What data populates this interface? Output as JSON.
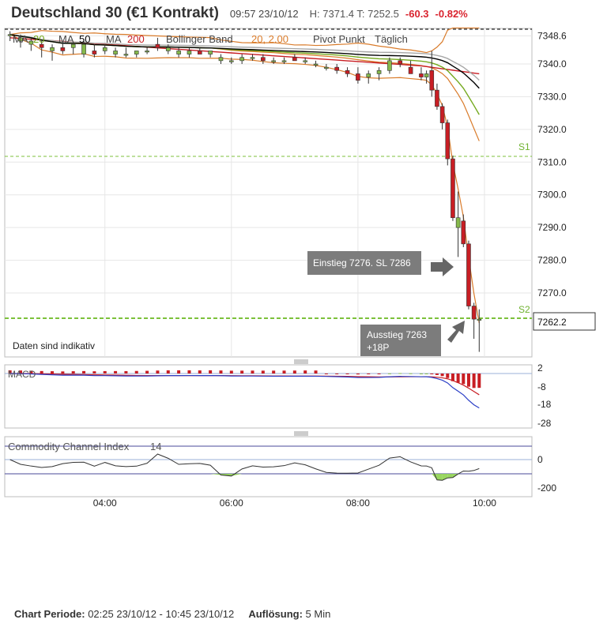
{
  "header": {
    "title": "Deutschland 30 (€1 Kontrakt)",
    "time": "09:57 23/10/12",
    "high_low": "H: 7371.4  T: 7252.5",
    "change": "-60.3",
    "change_pct": "-0.82%"
  },
  "legend": {
    "ma1_label": "MA",
    "ma1_period": "20",
    "ma2_label": "MA",
    "ma2_period": "50",
    "ma3_label": "MA",
    "ma3_period": "200",
    "bb_label": "Bollinger Band",
    "bb_params": "20, 2.00",
    "pivot_label": "Pivot Punkt",
    "pivot_period": "Täglich"
  },
  "colors": {
    "up": "#86b94b",
    "down": "#c81e24",
    "ma20": "#74a91e",
    "ma50": "#000000",
    "ma200": "#c81e24",
    "bollinger": "#d97b2a",
    "pivot": "#7cc13b",
    "macd_line": "#2b3fc6",
    "cci_fill_low": "#8ed14f",
    "cci_fill_high": "#f08080"
  },
  "notes": {
    "indicative": "Daten sind indikativ"
  },
  "annotations": {
    "entry": "Einstieg 7276. SL 7286",
    "exit_line1": "Ausstieg 7263",
    "exit_line2": "+18P"
  },
  "macd": {
    "label": "MACD",
    "ticks": [
      "2",
      "-8",
      "-18",
      "-28"
    ]
  },
  "cci": {
    "label": "Commodity Channel Index",
    "period": "14",
    "ticks": [
      "0",
      "-200"
    ]
  },
  "footer": {
    "period_label": "Chart Periode:",
    "period_value": "02:25 23/10/12 - 10:45 23/10/12",
    "resolution_label": "Auflösung:",
    "resolution_value": "5 Min"
  },
  "chart_data": {
    "type": "candlestick",
    "resolution": "5 Min",
    "x_ticks": [
      "04:00",
      "06:00",
      "08:00",
      "10:00"
    ],
    "y_ticks": [
      7348.6,
      7340.0,
      7330.0,
      7320.0,
      7310.0,
      7300.0,
      7290.0,
      7280.0,
      7270.0
    ],
    "ylim": [
      7260,
      7350
    ],
    "last_price": 7262.2,
    "last_price_label": "7262.2",
    "pivot_levels": [
      {
        "name": "S1",
        "value": 7312
      },
      {
        "name": "S2",
        "value": 7263
      }
    ],
    "candles": [
      {
        "t": "02:30",
        "o": 7349,
        "h": 7350,
        "l": 7347,
        "c": 7349
      },
      {
        "t": "02:40",
        "o": 7347,
        "h": 7349,
        "l": 7345,
        "c": 7348
      },
      {
        "t": "02:50",
        "o": 7346,
        "h": 7348,
        "l": 7344,
        "c": 7347
      },
      {
        "t": "03:00",
        "o": 7346,
        "h": 7347,
        "l": 7342,
        "c": 7345
      },
      {
        "t": "03:10",
        "o": 7344,
        "h": 7346,
        "l": 7341,
        "c": 7345
      },
      {
        "t": "03:20",
        "o": 7345,
        "h": 7347,
        "l": 7343,
        "c": 7344
      },
      {
        "t": "03:30",
        "o": 7345,
        "h": 7346,
        "l": 7343,
        "c": 7346
      },
      {
        "t": "03:40",
        "o": 7343,
        "h": 7347,
        "l": 7342,
        "c": 7346
      },
      {
        "t": "03:50",
        "o": 7344,
        "h": 7346,
        "l": 7342,
        "c": 7343
      },
      {
        "t": "04:00",
        "o": 7344,
        "h": 7346,
        "l": 7343,
        "c": 7345
      },
      {
        "t": "04:10",
        "o": 7343,
        "h": 7345,
        "l": 7342,
        "c": 7344
      },
      {
        "t": "04:20",
        "o": 7343,
        "h": 7345,
        "l": 7342,
        "c": 7343
      },
      {
        "t": "04:30",
        "o": 7343,
        "h": 7344,
        "l": 7342,
        "c": 7344
      },
      {
        "t": "04:40",
        "o": 7344,
        "h": 7345,
        "l": 7343,
        "c": 7344
      },
      {
        "t": "04:50",
        "o": 7346,
        "h": 7348,
        "l": 7344,
        "c": 7345
      },
      {
        "t": "05:00",
        "o": 7344,
        "h": 7346,
        "l": 7343,
        "c": 7345
      },
      {
        "t": "05:10",
        "o": 7343,
        "h": 7345,
        "l": 7342,
        "c": 7344
      },
      {
        "t": "05:20",
        "o": 7343,
        "h": 7345,
        "l": 7342,
        "c": 7344
      },
      {
        "t": "05:30",
        "o": 7344,
        "h": 7345,
        "l": 7343,
        "c": 7343
      },
      {
        "t": "05:40",
        "o": 7343,
        "h": 7344,
        "l": 7342,
        "c": 7344
      },
      {
        "t": "05:50",
        "o": 7341,
        "h": 7343,
        "l": 7340,
        "c": 7342
      },
      {
        "t": "06:00",
        "o": 7341,
        "h": 7342,
        "l": 7340,
        "c": 7341
      },
      {
        "t": "06:10",
        "o": 7341,
        "h": 7343,
        "l": 7340,
        "c": 7342
      },
      {
        "t": "06:20",
        "o": 7342,
        "h": 7343,
        "l": 7341,
        "c": 7342
      },
      {
        "t": "06:30",
        "o": 7342,
        "h": 7343,
        "l": 7340,
        "c": 7341
      },
      {
        "t": "06:40",
        "o": 7341,
        "h": 7342,
        "l": 7340,
        "c": 7341
      },
      {
        "t": "06:50",
        "o": 7341,
        "h": 7342,
        "l": 7340,
        "c": 7341
      },
      {
        "t": "07:00",
        "o": 7342,
        "h": 7343,
        "l": 7341,
        "c": 7341
      },
      {
        "t": "07:10",
        "o": 7341,
        "h": 7342,
        "l": 7340,
        "c": 7341
      },
      {
        "t": "07:20",
        "o": 7340,
        "h": 7341,
        "l": 7339,
        "c": 7340
      },
      {
        "t": "07:30",
        "o": 7339,
        "h": 7340,
        "l": 7338,
        "c": 7339
      },
      {
        "t": "07:40",
        "o": 7339,
        "h": 7340,
        "l": 7337,
        "c": 7338
      },
      {
        "t": "07:50",
        "o": 7338,
        "h": 7339,
        "l": 7336,
        "c": 7337
      },
      {
        "t": "08:00",
        "o": 7337,
        "h": 7339,
        "l": 7334,
        "c": 7335
      },
      {
        "t": "08:10",
        "o": 7336,
        "h": 7338,
        "l": 7334,
        "c": 7337
      },
      {
        "t": "08:20",
        "o": 7337,
        "h": 7339,
        "l": 7335,
        "c": 7338
      },
      {
        "t": "08:30",
        "o": 7338,
        "h": 7342,
        "l": 7337,
        "c": 7341
      },
      {
        "t": "08:40",
        "o": 7341,
        "h": 7342,
        "l": 7339,
        "c": 7340
      },
      {
        "t": "08:50",
        "o": 7339,
        "h": 7341,
        "l": 7337,
        "c": 7337
      },
      {
        "t": "09:00",
        "o": 7337,
        "h": 7339,
        "l": 7335,
        "c": 7336
      },
      {
        "t": "09:05",
        "o": 7336,
        "h": 7338,
        "l": 7334,
        "c": 7337
      },
      {
        "t": "09:10",
        "o": 7338,
        "h": 7344,
        "l": 7330,
        "c": 7332
      },
      {
        "t": "09:15",
        "o": 7332,
        "h": 7334,
        "l": 7326,
        "c": 7327
      },
      {
        "t": "09:20",
        "o": 7327,
        "h": 7328,
        "l": 7320,
        "c": 7322
      },
      {
        "t": "09:25",
        "o": 7322,
        "h": 7323,
        "l": 7309,
        "c": 7311
      },
      {
        "t": "09:30",
        "o": 7311,
        "h": 7312,
        "l": 7292,
        "c": 7293
      },
      {
        "t": "09:35",
        "o": 7290,
        "h": 7301,
        "l": 7281,
        "c": 7293
      },
      {
        "t": "09:40",
        "o": 7292,
        "h": 7294,
        "l": 7284,
        "c": 7285
      },
      {
        "t": "09:45",
        "o": 7285,
        "h": 7286,
        "l": 7265,
        "c": 7266
      },
      {
        "t": "09:50",
        "o": 7266,
        "h": 7267,
        "l": 7256,
        "c": 7262
      },
      {
        "t": "09:55",
        "o": 7262,
        "h": 7265,
        "l": 7252,
        "c": 7262
      }
    ]
  }
}
